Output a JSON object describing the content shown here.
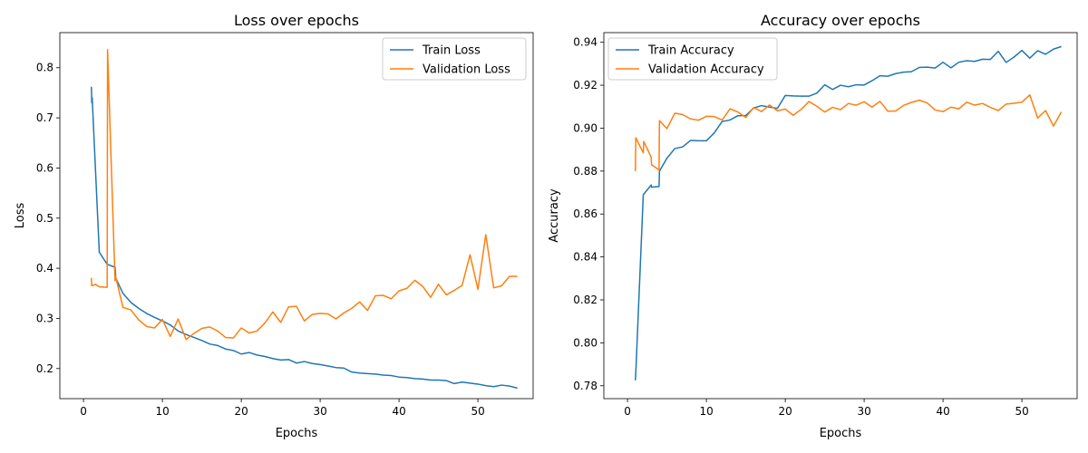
{
  "chart_data": [
    {
      "type": "line",
      "title": "Loss over epochs",
      "xlabel": "Epochs",
      "ylabel": "Loss",
      "xlim": [
        -3,
        57
      ],
      "ylim": [
        0.14,
        0.87
      ],
      "xticks": [
        0,
        10,
        20,
        30,
        40,
        50
      ],
      "yticks": [
        0.2,
        0.3,
        0.4,
        0.5,
        0.6,
        0.7,
        0.8
      ],
      "grid": false,
      "legend_position": "top-right",
      "series": [
        {
          "name": "Train Loss",
          "color": "#1f77b4",
          "points": [
            [
              1,
              0.762
            ],
            [
              1.05,
              0.73
            ],
            [
              1.1,
              0.74
            ],
            [
              2,
              0.432
            ],
            [
              3,
              0.408
            ],
            [
              4,
              0.402
            ],
            [
              4.1,
              0.38
            ],
            [
              5,
              0.35
            ],
            [
              6,
              0.332
            ],
            [
              7,
              0.32
            ],
            [
              8,
              0.31
            ],
            [
              9,
              0.302
            ],
            [
              10,
              0.295
            ],
            [
              11,
              0.287
            ],
            [
              12,
              0.275
            ],
            [
              13,
              0.268
            ],
            [
              14,
              0.262
            ],
            [
              15,
              0.256
            ],
            [
              16,
              0.249
            ],
            [
              17,
              0.246
            ],
            [
              18,
              0.239
            ],
            [
              19,
              0.236
            ],
            [
              20,
              0.229
            ],
            [
              21,
              0.232
            ],
            [
              22,
              0.227
            ],
            [
              23,
              0.224
            ],
            [
              24,
              0.22
            ],
            [
              25,
              0.217
            ],
            [
              26,
              0.218
            ],
            [
              27,
              0.211
            ],
            [
              28,
              0.214
            ],
            [
              29,
              0.21
            ],
            [
              30,
              0.208
            ],
            [
              31,
              0.205
            ],
            [
              32,
              0.202
            ],
            [
              33,
              0.201
            ],
            [
              34,
              0.193
            ],
            [
              35,
              0.191
            ],
            [
              36,
              0.19
            ],
            [
              37,
              0.189
            ],
            [
              38,
              0.187
            ],
            [
              39,
              0.186
            ],
            [
              40,
              0.183
            ],
            [
              41,
              0.182
            ],
            [
              42,
              0.18
            ],
            [
              43,
              0.179
            ],
            [
              44,
              0.177
            ],
            [
              45,
              0.177
            ],
            [
              46,
              0.176
            ],
            [
              47,
              0.17
            ],
            [
              48,
              0.173
            ],
            [
              49,
              0.171
            ],
            [
              50,
              0.169
            ],
            [
              51,
              0.166
            ],
            [
              52,
              0.164
            ],
            [
              53,
              0.167
            ],
            [
              54,
              0.165
            ],
            [
              55,
              0.161
            ]
          ]
        },
        {
          "name": "Validation Loss",
          "color": "#ff7f0e",
          "points": [
            [
              1,
              0.381
            ],
            [
              1.05,
              0.365
            ],
            [
              1.5,
              0.368
            ],
            [
              2,
              0.363
            ],
            [
              3,
              0.362
            ],
            [
              3.05,
              0.836
            ],
            [
              4,
              0.375
            ],
            [
              4.05,
              0.385
            ],
            [
              5,
              0.322
            ],
            [
              6,
              0.317
            ],
            [
              7,
              0.297
            ],
            [
              8,
              0.284
            ],
            [
              9,
              0.281
            ],
            [
              10,
              0.298
            ],
            [
              11,
              0.264
            ],
            [
              12,
              0.299
            ],
            [
              13,
              0.258
            ],
            [
              14,
              0.27
            ],
            [
              15,
              0.28
            ],
            [
              16,
              0.283
            ],
            [
              17,
              0.275
            ],
            [
              18,
              0.262
            ],
            [
              19,
              0.261
            ],
            [
              20,
              0.281
            ],
            [
              21,
              0.271
            ],
            [
              22,
              0.275
            ],
            [
              23,
              0.291
            ],
            [
              24,
              0.313
            ],
            [
              25,
              0.292
            ],
            [
              26,
              0.323
            ],
            [
              27,
              0.324
            ],
            [
              28,
              0.295
            ],
            [
              29,
              0.308
            ],
            [
              30,
              0.31
            ],
            [
              31,
              0.309
            ],
            [
              32,
              0.299
            ],
            [
              33,
              0.311
            ],
            [
              34,
              0.32
            ],
            [
              35,
              0.333
            ],
            [
              36,
              0.316
            ],
            [
              37,
              0.345
            ],
            [
              38,
              0.346
            ],
            [
              39,
              0.339
            ],
            [
              40,
              0.355
            ],
            [
              41,
              0.36
            ],
            [
              42,
              0.376
            ],
            [
              43,
              0.364
            ],
            [
              44,
              0.342
            ],
            [
              45,
              0.368
            ],
            [
              46,
              0.347
            ],
            [
              47,
              0.356
            ],
            [
              48,
              0.366
            ],
            [
              49,
              0.427
            ],
            [
              50,
              0.358
            ],
            [
              51,
              0.467
            ],
            [
              52,
              0.361
            ],
            [
              53,
              0.365
            ],
            [
              54,
              0.384
            ],
            [
              55,
              0.384
            ]
          ]
        }
      ]
    },
    {
      "type": "line",
      "title": "Accuracy over epochs",
      "xlabel": "Epochs",
      "ylabel": "Accuracy",
      "xlim": [
        -3,
        57
      ],
      "ylim": [
        0.774,
        0.9445
      ],
      "xticks": [
        0,
        10,
        20,
        30,
        40,
        50
      ],
      "yticks": [
        0.78,
        0.8,
        0.82,
        0.84,
        0.86,
        0.88,
        0.9,
        0.92,
        0.94
      ],
      "ytick_labels": [
        "0.78",
        "0.80",
        "0.82",
        "0.84",
        "0.86",
        "0.88",
        "0.90",
        "0.92",
        "0.94"
      ],
      "grid": false,
      "legend_position": "top-left",
      "series": [
        {
          "name": "Train Accuracy",
          "color": "#1f77b4",
          "points": [
            [
              1,
              0.7825
            ],
            [
              1.05,
              0.786
            ],
            [
              2,
              0.869
            ],
            [
              3,
              0.8735
            ],
            [
              3.05,
              0.8725
            ],
            [
              4,
              0.8728
            ],
            [
              4.05,
              0.88
            ],
            [
              5,
              0.886
            ],
            [
              6,
              0.8905
            ],
            [
              7,
              0.8913
            ],
            [
              8,
              0.8943
            ],
            [
              9,
              0.8941
            ],
            [
              10,
              0.8941
            ],
            [
              11,
              0.8978
            ],
            [
              12,
              0.9031
            ],
            [
              13,
              0.9038
            ],
            [
              14,
              0.9058
            ],
            [
              15,
              0.9059
            ],
            [
              16,
              0.9094
            ],
            [
              17,
              0.9105
            ],
            [
              18,
              0.9098
            ],
            [
              19,
              0.9092
            ],
            [
              20,
              0.9152
            ],
            [
              21,
              0.915
            ],
            [
              22,
              0.9149
            ],
            [
              23,
              0.9149
            ],
            [
              24,
              0.9163
            ],
            [
              25,
              0.9202
            ],
            [
              26,
              0.918
            ],
            [
              27,
              0.92
            ],
            [
              28,
              0.9193
            ],
            [
              29,
              0.9202
            ],
            [
              30,
              0.9201
            ],
            [
              31,
              0.9221
            ],
            [
              32,
              0.9244
            ],
            [
              33,
              0.9242
            ],
            [
              34,
              0.9254
            ],
            [
              35,
              0.9261
            ],
            [
              36,
              0.9263
            ],
            [
              37,
              0.9283
            ],
            [
              38,
              0.9284
            ],
            [
              39,
              0.928
            ],
            [
              40,
              0.9307
            ],
            [
              41,
              0.9281
            ],
            [
              42,
              0.9307
            ],
            [
              43,
              0.9314
            ],
            [
              44,
              0.9311
            ],
            [
              45,
              0.9321
            ],
            [
              46,
              0.932
            ],
            [
              47,
              0.9358
            ],
            [
              48,
              0.9306
            ],
            [
              49,
              0.9331
            ],
            [
              50,
              0.9362
            ],
            [
              51,
              0.9326
            ],
            [
              52,
              0.9361
            ],
            [
              53,
              0.9344
            ],
            [
              54,
              0.9368
            ],
            [
              55,
              0.938
            ]
          ]
        },
        {
          "name": "Validation Accuracy",
          "color": "#ff7f0e",
          "points": [
            [
              1,
              0.88
            ],
            [
              1.05,
              0.8955
            ],
            [
              2,
              0.8885
            ],
            [
              2.05,
              0.8938
            ],
            [
              3,
              0.8865
            ],
            [
              3.05,
              0.883
            ],
            [
              4,
              0.8805
            ],
            [
              4.05,
              0.9035
            ],
            [
              5,
              0.8998
            ],
            [
              6,
              0.907
            ],
            [
              7,
              0.9063
            ],
            [
              8,
              0.9043
            ],
            [
              9,
              0.9037
            ],
            [
              10,
              0.9055
            ],
            [
              11,
              0.9054
            ],
            [
              12,
              0.9038
            ],
            [
              13,
              0.909
            ],
            [
              14,
              0.9075
            ],
            [
              15,
              0.905
            ],
            [
              16,
              0.9096
            ],
            [
              17,
              0.9077
            ],
            [
              18,
              0.9108
            ],
            [
              19,
              0.9081
            ],
            [
              20,
              0.9089
            ],
            [
              21,
              0.906
            ],
            [
              22,
              0.9087
            ],
            [
              23,
              0.9124
            ],
            [
              24,
              0.9102
            ],
            [
              25,
              0.9075
            ],
            [
              26,
              0.9097
            ],
            [
              27,
              0.9086
            ],
            [
              28,
              0.9115
            ],
            [
              29,
              0.9107
            ],
            [
              30,
              0.9123
            ],
            [
              31,
              0.9098
            ],
            [
              32,
              0.9125
            ],
            [
              33,
              0.9079
            ],
            [
              34,
              0.908
            ],
            [
              35,
              0.9106
            ],
            [
              36,
              0.912
            ],
            [
              37,
              0.913
            ],
            [
              38,
              0.9117
            ],
            [
              39,
              0.9085
            ],
            [
              40,
              0.9077
            ],
            [
              41,
              0.9098
            ],
            [
              42,
              0.909
            ],
            [
              43,
              0.9121
            ],
            [
              44,
              0.9107
            ],
            [
              45,
              0.9115
            ],
            [
              46,
              0.9097
            ],
            [
              47,
              0.9082
            ],
            [
              48,
              0.9112
            ],
            [
              49,
              0.9116
            ],
            [
              50,
              0.9121
            ],
            [
              51,
              0.9155
            ],
            [
              52,
              0.9047
            ],
            [
              53,
              0.9082
            ],
            [
              54,
              0.901
            ],
            [
              55,
              0.9075
            ]
          ]
        }
      ]
    }
  ]
}
